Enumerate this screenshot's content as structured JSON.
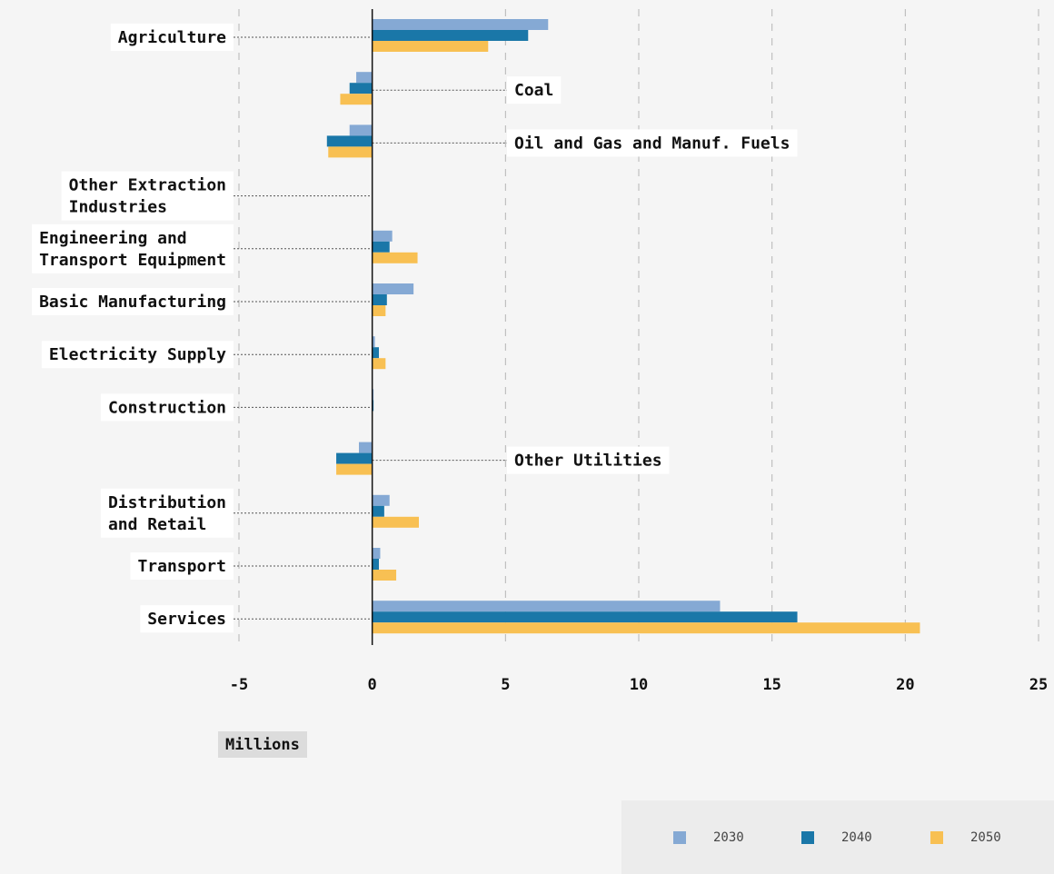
{
  "chart_data": {
    "type": "bar",
    "orientation": "horizontal",
    "categories": [
      "Agriculture",
      "Coal",
      "Oil and Gas and Manuf. Fuels",
      "Other Extraction Industries",
      "Engineering and Transport Equipment",
      "Basic Manufacturing",
      "Electricity Supply",
      "Construction",
      "Other Utilities",
      "Distribution and Retail",
      "Transport",
      "Services"
    ],
    "category_label_lines": [
      [
        "Agriculture"
      ],
      [
        "Coal"
      ],
      [
        "Oil and Gas and Manuf. Fuels"
      ],
      [
        "Other Extraction",
        "Industries"
      ],
      [
        "Engineering and",
        "Transport Equipment"
      ],
      [
        "Basic Manufacturing"
      ],
      [
        "Electricity Supply"
      ],
      [
        "Construction"
      ],
      [
        "Other Utilities"
      ],
      [
        "Distribution",
        "and Retail"
      ],
      [
        "Transport"
      ],
      [
        "Services"
      ]
    ],
    "label_side": [
      "left",
      "right",
      "right",
      "left",
      "left",
      "left",
      "left",
      "left",
      "right",
      "left",
      "left",
      "left"
    ],
    "series": [
      {
        "name": "2030",
        "color": "#85a9d4",
        "values": [
          6.6,
          -0.6,
          -0.85,
          0.0,
          0.75,
          1.55,
          0.1,
          0.05,
          -0.5,
          0.65,
          0.3,
          13.05
        ]
      },
      {
        "name": "2040",
        "color": "#1a77a8",
        "values": [
          5.85,
          -0.85,
          -1.7,
          0.0,
          0.65,
          0.55,
          0.25,
          0.05,
          -1.35,
          0.45,
          0.25,
          15.95
        ]
      },
      {
        "name": "2050",
        "color": "#f8c053",
        "values": [
          4.35,
          -1.2,
          -1.65,
          0.0,
          1.7,
          0.5,
          0.5,
          0.02,
          -1.35,
          1.75,
          0.9,
          20.55
        ]
      }
    ],
    "xlim": [
      -5,
      25
    ],
    "xticks": [
      -5,
      0,
      5,
      10,
      15,
      20,
      25
    ],
    "xtick_labels": [
      "-5",
      "0",
      "5",
      "10",
      "15",
      "20",
      "25"
    ],
    "xlabel": "Millions",
    "grid": "vertical dashed",
    "legend_position": "bottom-right"
  }
}
